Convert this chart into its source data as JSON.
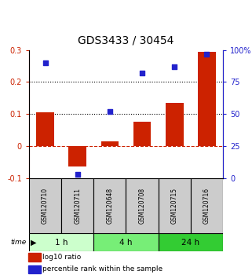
{
  "title": "GDS3433 / 30454",
  "samples": [
    "GSM120710",
    "GSM120711",
    "GSM120648",
    "GSM120708",
    "GSM120715",
    "GSM120716"
  ],
  "log10_ratio": [
    0.105,
    -0.065,
    0.015,
    0.075,
    0.135,
    0.295
  ],
  "percentile_rank": [
    90,
    3,
    52,
    82,
    87,
    97
  ],
  "left_ylim": [
    -0.1,
    0.3
  ],
  "right_ylim": [
    0,
    100
  ],
  "left_yticks": [
    -0.1,
    0.0,
    0.1,
    0.2,
    0.3
  ],
  "right_yticks": [
    0,
    25,
    50,
    75,
    100
  ],
  "right_yticklabels": [
    "0",
    "25",
    "50",
    "75",
    "100%"
  ],
  "dotted_lines": [
    0.1,
    0.2
  ],
  "dashed_zero": 0.0,
  "bar_color": "#cc2200",
  "dot_color": "#2222cc",
  "time_groups": [
    {
      "label": "1 h",
      "start": 0,
      "end": 2,
      "color": "#ccffcc"
    },
    {
      "label": "4 h",
      "start": 2,
      "end": 4,
      "color": "#77ee77"
    },
    {
      "label": "24 h",
      "start": 4,
      "end": 6,
      "color": "#33cc33"
    }
  ],
  "background_color": "#ffffff",
  "sample_box_color": "#cccccc",
  "title_fontsize": 10,
  "tick_fontsize": 7,
  "legend_fontsize": 6.5,
  "bar_width": 0.55
}
